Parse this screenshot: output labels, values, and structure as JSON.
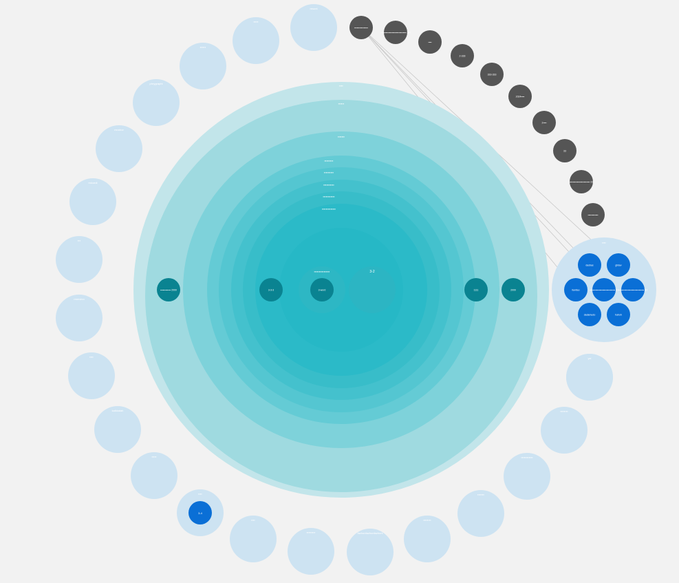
{
  "diagram": {
    "central_rings": [
      {
        "label": "▪▪▪▪",
        "color": "#c2e5ea"
      },
      {
        "label": "▪▪▪▪▪▪",
        "color": "#9fdae0"
      },
      {
        "label": "▪▪▪▪▪▪▪",
        "color": "#7ed2da"
      },
      {
        "label": "▪▪▪▪▪▪▪▪▪",
        "color": "#64cbd5"
      },
      {
        "label": "▪▪▪▪▪▪▪▪▪▪",
        "color": "#54c6d1"
      },
      {
        "label": "▪▪▪▪▪▪▪▪▪▪▪",
        "color": "#44c1cd"
      },
      {
        "label": "▪▪▪▪▪▪▪▪▪▪▪▪",
        "color": "#38bdc9"
      },
      {
        "label": "▪▪▪▪▪▪▪▪▪▪▪▪▪▪",
        "color": "#2bbac8"
      },
      {
        "label": "",
        "color": "#26b8c6"
      }
    ],
    "inner_group_label": "▪▪▪▪▪▪▪▪▪▪▪▪▪▪▪▪",
    "inner_group_label_2": "3-2",
    "teal_nodes": [
      {
        "label": "▪▪▪▪▪▪▪▪▪▪▪▪ 2000"
      },
      {
        "label": "3-3-3"
      },
      {
        "label": "3-word"
      },
      {
        "label": "1111"
      },
      {
        "label": "2000"
      }
    ],
    "outer_nodes": [
      {
        "label": "resonl"
      },
      {
        "label": "▪▪▪▪▪"
      },
      {
        "label": "▪▪▪▪▪▪"
      },
      {
        "label": "phrygraphi"
      },
      {
        "label": "mnnhor"
      },
      {
        "label": "micordl"
      },
      {
        "label": "▪▪▪"
      },
      {
        "label": "rmmvlnn"
      },
      {
        "label": "▪▪▪▪"
      },
      {
        "label": "kalkkalah"
      },
      {
        "label": "▪▪▪▪▪"
      },
      {
        "label": "▪▪▪▪"
      },
      {
        "label": "▪▪▪▪▪▪▪▪▪"
      },
      {
        "label": "fazhonfazhonfazhonl"
      },
      {
        "label": "▪▪▪▪▪▪▪▪"
      },
      {
        "label": "▪▪▪▪▪▪▪"
      },
      {
        "label": "▪▪▪▪▪▪▪▪▪▪▪▪"
      },
      {
        "label": "▪▪▪▪▪▪▪▪"
      },
      {
        "label": "rnhnlo"
      },
      {
        "label": "yzi"
      }
    ],
    "selected_outer_node": {
      "label": "▪▪▪▪",
      "inner_label": "3-4"
    },
    "dark_nodes": [
      {
        "label": "▪▪▪▪▪▪▪▪▪▪▪▪▪▪▪▪"
      },
      {
        "label": "▪▪▪▪▪▪▪▪▪▪▪▪▪▪▪▪▪▪▪▪▪▪▪▪▪▪▪▪▪▪ 2/4"
      },
      {
        "label": "▪▪▪▪"
      },
      {
        "label": "2-333"
      },
      {
        "label": "333-333"
      },
      {
        "label": "2024▪▪▪▪"
      },
      {
        "label": "2▪▪▪▪"
      },
      {
        "label": "33"
      },
      {
        "label": "▪▪▪▪▪▪▪▪▪▪▪▪▪▪▪▪▪▪▪▪▪▪▪▪ 33"
      },
      {
        "label": "▪▪▪▪▪▪▪▪▪▪▪▪"
      }
    ],
    "cluster": {
      "label": "▪▪▪▪",
      "nodes": [
        {
          "label": "dasbas"
        },
        {
          "label": "glidav"
        },
        {
          "label": "llanitao"
        },
        {
          "label": "▪▪▪▪▪▪▪▪▪▪▪▪▪▪▪▪▪▪▪▪▪▪▪▪▪▪▪▪▪▪ 33"
        },
        {
          "label": "▪▪▪▪▪▪▪▪▪▪▪▪▪▪▪▪▪▪▪▪▪▪▪▪▪▪▪▪▪▪ 33"
        },
        {
          "label": "dadamudo"
        },
        {
          "label": "hahoh"
        }
      ]
    },
    "colors": {
      "background": "#f2f2f2",
      "outer_node": "#cde3f2",
      "dark_node": "#555555",
      "blue_node": "#0a6fd6",
      "teal_node": "#0a8391",
      "link": "#c8c8c8"
    }
  }
}
